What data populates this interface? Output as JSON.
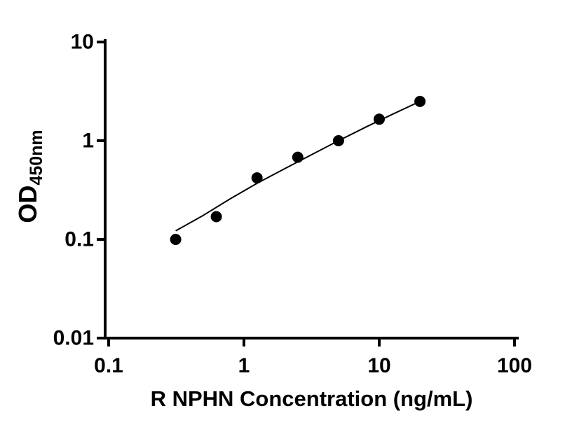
{
  "chart_data": {
    "type": "scatter",
    "title": "",
    "xlabel": "R NPHN Concentration (ng/mL)",
    "ylabel_main": "OD",
    "ylabel_sub": "450nm",
    "x_scale": "log10",
    "y_scale": "log10",
    "xlim": [
      0.1,
      100
    ],
    "ylim": [
      0.01,
      10
    ],
    "grid": false,
    "legend": false,
    "axis_color": "#000000",
    "marker_color": "#000000",
    "line_color": "#000000",
    "x_ticks": [
      {
        "value": 0.1,
        "label": "0.1"
      },
      {
        "value": 1,
        "label": "1"
      },
      {
        "value": 10,
        "label": "10"
      },
      {
        "value": 100,
        "label": "100"
      }
    ],
    "y_ticks": [
      {
        "value": 0.01,
        "label": "0.01"
      },
      {
        "value": 0.1,
        "label": "0.1"
      },
      {
        "value": 1,
        "label": "1"
      },
      {
        "value": 10,
        "label": "10"
      }
    ],
    "points": [
      {
        "x": 0.313,
        "y": 0.1
      },
      {
        "x": 0.625,
        "y": 0.17
      },
      {
        "x": 1.25,
        "y": 0.42
      },
      {
        "x": 2.5,
        "y": 0.68
      },
      {
        "x": 5,
        "y": 1.0
      },
      {
        "x": 10,
        "y": 1.65
      },
      {
        "x": 20,
        "y": 2.5
      }
    ],
    "fit_line": [
      {
        "x": 0.313,
        "y": 0.122
      },
      {
        "x": 0.5,
        "y": 0.175
      },
      {
        "x": 0.8,
        "y": 0.26
      },
      {
        "x": 1.25,
        "y": 0.37
      },
      {
        "x": 2.0,
        "y": 0.52
      },
      {
        "x": 3.15,
        "y": 0.72
      },
      {
        "x": 5.0,
        "y": 1.0
      },
      {
        "x": 8.0,
        "y": 1.38
      },
      {
        "x": 12.5,
        "y": 1.85
      },
      {
        "x": 20.0,
        "y": 2.5
      }
    ]
  }
}
